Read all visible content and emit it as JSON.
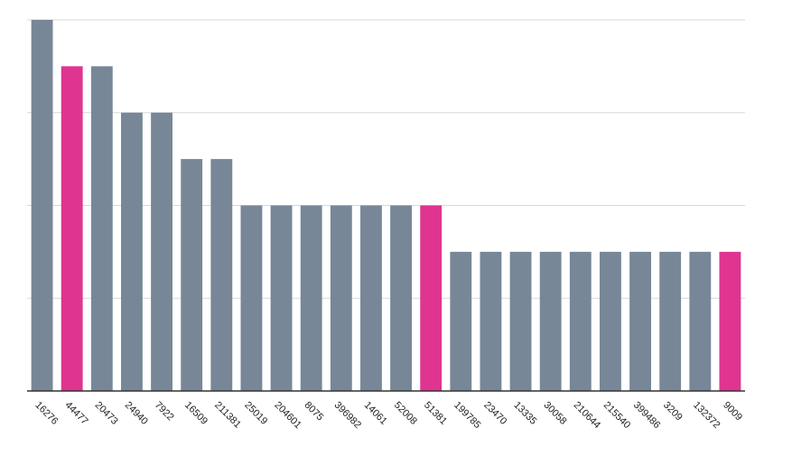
{
  "chart_data": {
    "type": "bar",
    "categories": [
      "16276",
      "44477",
      "20473",
      "24940",
      "7922",
      "16509",
      "211381",
      "25019",
      "204601",
      "8075",
      "396982",
      "14061",
      "52008",
      "51381",
      "199785",
      "23470",
      "13335",
      "30058",
      "210644",
      "215540",
      "399486",
      "3209",
      "132372",
      "9009"
    ],
    "values": [
      8,
      7,
      7,
      6,
      6,
      5,
      5,
      4,
      4,
      4,
      4,
      4,
      4,
      4,
      3,
      3,
      3,
      3,
      3,
      3,
      3,
      3,
      3,
      3
    ],
    "colors": [
      "#778797",
      "#df3590",
      "#778797",
      "#778797",
      "#778797",
      "#778797",
      "#778797",
      "#778797",
      "#778797",
      "#778797",
      "#778797",
      "#778797",
      "#778797",
      "#df3590",
      "#778797",
      "#778797",
      "#778797",
      "#778797",
      "#778797",
      "#778797",
      "#778797",
      "#778797",
      "#778797",
      "#df3590"
    ],
    "ylim": [
      0,
      8
    ],
    "yticks": [
      0,
      2,
      4,
      6,
      8
    ],
    "grid": true
  }
}
